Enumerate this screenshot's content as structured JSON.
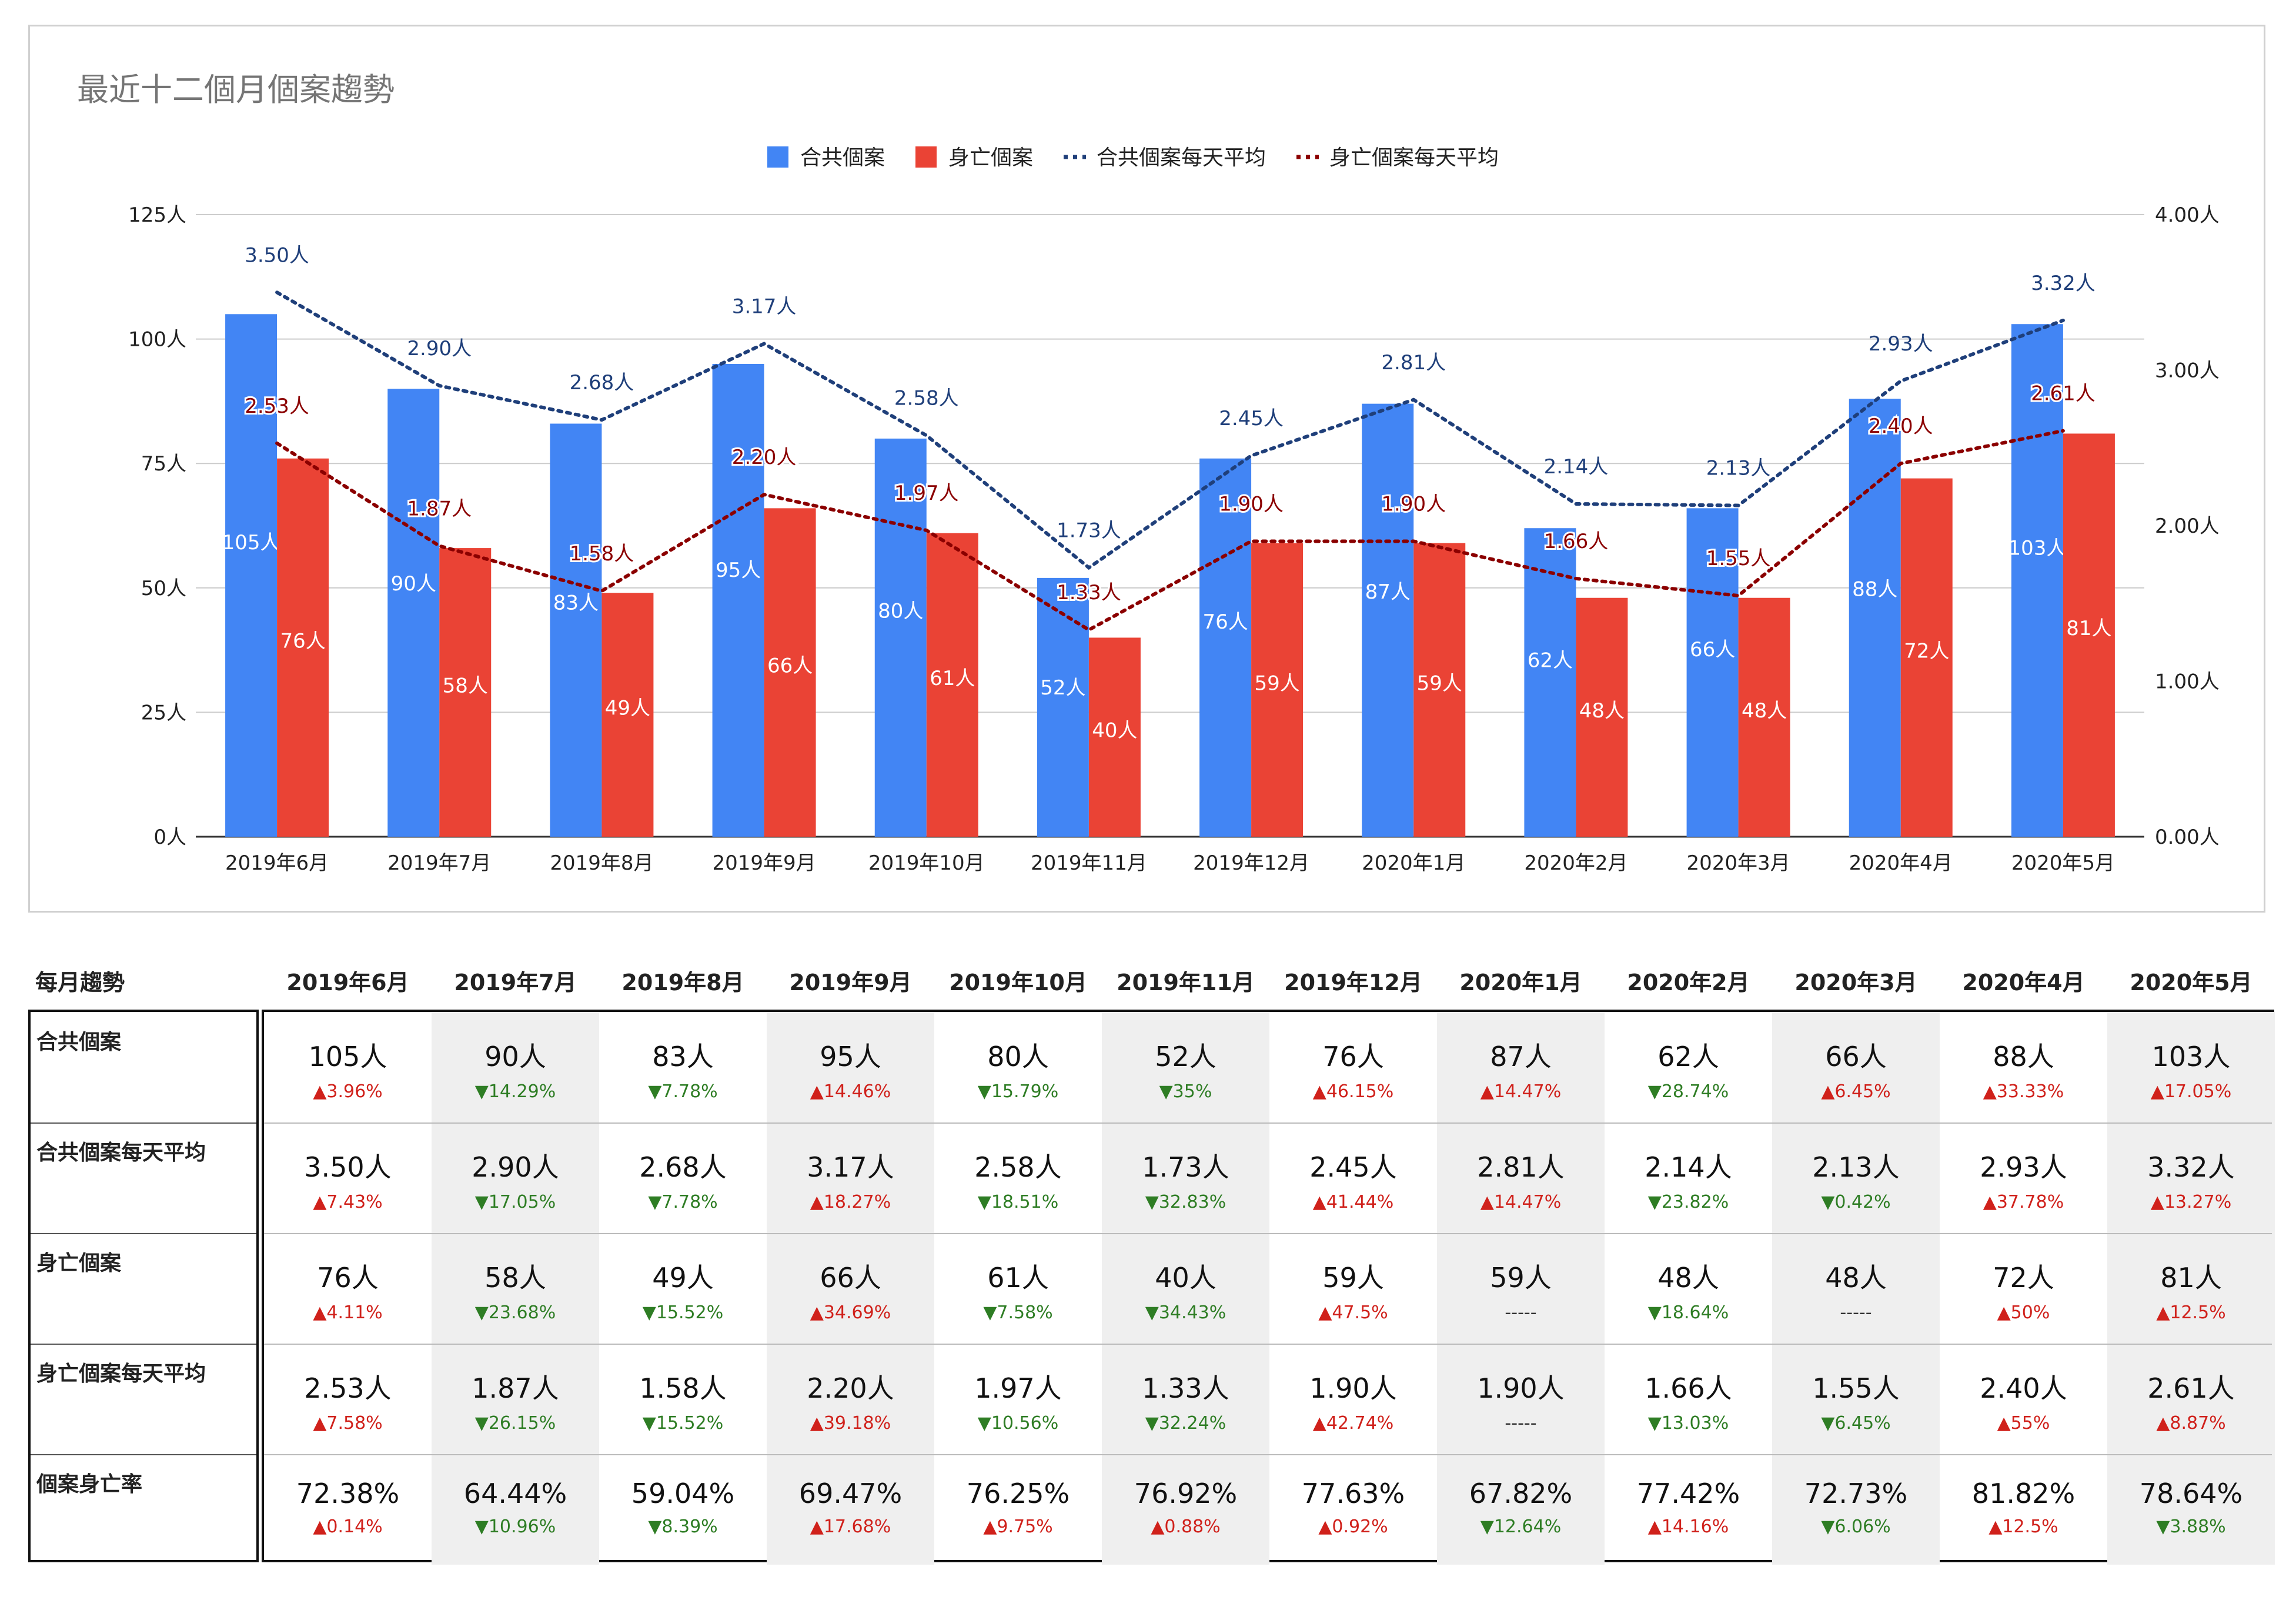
{
  "chart_data": {
    "type": "bar",
    "title": "最近十二個月個案趨勢",
    "legend": [
      {
        "name": "合共個案",
        "kind": "bar",
        "color": "#4285f4"
      },
      {
        "name": "身亡個案",
        "kind": "bar",
        "color": "#ea4335"
      },
      {
        "name": "合共個案每天平均",
        "kind": "dotted-line",
        "color": "#1f3f7a"
      },
      {
        "name": "身亡個案每天平均",
        "kind": "dotted-line",
        "color": "#8b0000"
      }
    ],
    "categories": [
      "2019年6月",
      "2019年7月",
      "2019年8月",
      "2019年9月",
      "2019年10月",
      "2019年11月",
      "2019年12月",
      "2020年1月",
      "2020年2月",
      "2020年3月",
      "2020年4月",
      "2020年5月"
    ],
    "series": [
      {
        "name": "合共個案",
        "axis": "left",
        "values": [
          105,
          90,
          83,
          95,
          80,
          52,
          76,
          87,
          62,
          66,
          88,
          103
        ],
        "labels": [
          "105人",
          "90人",
          "83人",
          "95人",
          "80人",
          "52人",
          "76人",
          "87人",
          "62人",
          "66人",
          "88人",
          "103人"
        ]
      },
      {
        "name": "身亡個案",
        "axis": "left",
        "values": [
          76,
          58,
          49,
          66,
          61,
          40,
          59,
          59,
          48,
          48,
          72,
          81
        ],
        "labels": [
          "76人",
          "58人",
          "49人",
          "66人",
          "61人",
          "40人",
          "59人",
          "59人",
          "48人",
          "48人",
          "72人",
          "81人"
        ]
      },
      {
        "name": "合共個案每天平均",
        "axis": "right",
        "values": [
          3.5,
          2.9,
          2.68,
          3.17,
          2.58,
          1.73,
          2.45,
          2.81,
          2.14,
          2.13,
          2.93,
          3.32
        ],
        "labels": [
          "3.50人",
          "2.90人",
          "2.68人",
          "3.17人",
          "2.58人",
          "1.73人",
          "2.45人",
          "2.81人",
          "2.14人",
          "2.13人",
          "2.93人",
          "3.32人"
        ]
      },
      {
        "name": "身亡個案每天平均",
        "axis": "right",
        "values": [
          2.53,
          1.87,
          1.58,
          2.2,
          1.97,
          1.33,
          1.9,
          1.9,
          1.66,
          1.55,
          2.4,
          2.61
        ],
        "labels": [
          "2.53人",
          "1.87人",
          "1.58人",
          "2.20人",
          "1.97人",
          "1.33人",
          "1.90人",
          "1.90人",
          "1.66人",
          "1.55人",
          "2.40人",
          "2.61人"
        ]
      }
    ],
    "left_axis": {
      "ylim": [
        0,
        125
      ],
      "ticks": [
        0,
        25,
        50,
        75,
        100,
        125
      ],
      "tick_labels": [
        "0人",
        "25人",
        "50人",
        "75人",
        "100人",
        "125人"
      ]
    },
    "right_axis": {
      "ylim": [
        0,
        4
      ],
      "ticks": [
        0,
        1,
        2,
        3,
        4
      ],
      "tick_labels": [
        "0.00人",
        "1.00人",
        "2.00人",
        "3.00人",
        "4.00人"
      ]
    },
    "grid": true,
    "legend_position": "top-center"
  },
  "table": {
    "corner": "每月趨勢",
    "months": [
      "2019年6月",
      "2019年7月",
      "2019年8月",
      "2019年9月",
      "2019年10月",
      "2019年11月",
      "2019年12月",
      "2020年1月",
      "2020年2月",
      "2020年3月",
      "2020年4月",
      "2020年5月"
    ],
    "rows": [
      {
        "label": "合共個案",
        "values": [
          "105人",
          "90人",
          "83人",
          "95人",
          "80人",
          "52人",
          "76人",
          "87人",
          "62人",
          "66人",
          "88人",
          "103人"
        ],
        "changes": [
          "▲3.96%",
          "▼14.29%",
          "▼7.78%",
          "▲14.46%",
          "▼15.79%",
          "▼35%",
          "▲46.15%",
          "▲14.47%",
          "▼28.74%",
          "▲6.45%",
          "▲33.33%",
          "▲17.05%"
        ]
      },
      {
        "label": "合共個案每天平均",
        "values": [
          "3.50人",
          "2.90人",
          "2.68人",
          "3.17人",
          "2.58人",
          "1.73人",
          "2.45人",
          "2.81人",
          "2.14人",
          "2.13人",
          "2.93人",
          "3.32人"
        ],
        "changes": [
          "▲7.43%",
          "▼17.05%",
          "▼7.78%",
          "▲18.27%",
          "▼18.51%",
          "▼32.83%",
          "▲41.44%",
          "▲14.47%",
          "▼23.82%",
          "▼0.42%",
          "▲37.78%",
          "▲13.27%"
        ]
      },
      {
        "label": "身亡個案",
        "values": [
          "76人",
          "58人",
          "49人",
          "66人",
          "61人",
          "40人",
          "59人",
          "59人",
          "48人",
          "48人",
          "72人",
          "81人"
        ],
        "changes": [
          "▲4.11%",
          "▼23.68%",
          "▼15.52%",
          "▲34.69%",
          "▼7.58%",
          "▼34.43%",
          "▲47.5%",
          "-----",
          "▼18.64%",
          "-----",
          "▲50%",
          "▲12.5%"
        ]
      },
      {
        "label": "身亡個案每天平均",
        "values": [
          "2.53人",
          "1.87人",
          "1.58人",
          "2.20人",
          "1.97人",
          "1.33人",
          "1.90人",
          "1.90人",
          "1.66人",
          "1.55人",
          "2.40人",
          "2.61人"
        ],
        "changes": [
          "▲7.58%",
          "▼26.15%",
          "▼15.52%",
          "▲39.18%",
          "▼10.56%",
          "▼32.24%",
          "▲42.74%",
          "-----",
          "▼13.03%",
          "▼6.45%",
          "▲55%",
          "▲8.87%"
        ]
      },
      {
        "label": "個案身亡率",
        "values": [
          "72.38%",
          "64.44%",
          "59.04%",
          "69.47%",
          "76.25%",
          "76.92%",
          "77.63%",
          "67.82%",
          "77.42%",
          "72.73%",
          "81.82%",
          "78.64%"
        ],
        "changes": [
          "▲0.14%",
          "▼10.96%",
          "▼8.39%",
          "▲17.68%",
          "▲9.75%",
          "▲0.88%",
          "▲0.92%",
          "▼12.64%",
          "▲14.16%",
          "▼6.06%",
          "▲12.5%",
          "▼3.88%"
        ]
      }
    ],
    "colors": {
      "up": "#d0211b",
      "down": "#2e7d24",
      "shade": "#efefef"
    }
  }
}
